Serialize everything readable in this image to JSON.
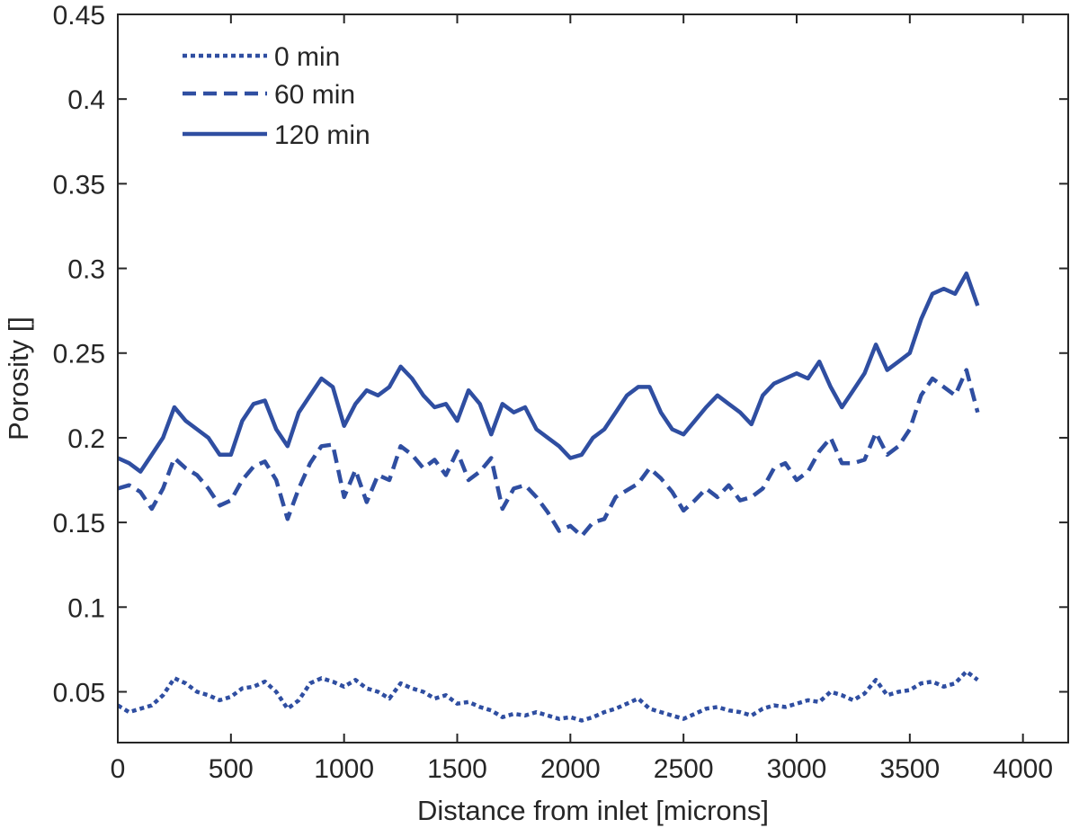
{
  "chart_data": {
    "type": "line",
    "title": "",
    "xlabel": "Distance from inlet [microns]",
    "ylabel": "Porosity []",
    "xlim": [
      0,
      4200
    ],
    "ylim": [
      0.02,
      0.45
    ],
    "xticks": [
      0,
      500,
      1000,
      1500,
      2000,
      2500,
      3000,
      3500,
      4000
    ],
    "xtick_labels": [
      "0",
      "500",
      "1000",
      "1500",
      "2000",
      "2500",
      "3000",
      "3500",
      "4000"
    ],
    "yticks": [
      0.05,
      0.1,
      0.15,
      0.2,
      0.25,
      0.3,
      0.35,
      0.4,
      0.45
    ],
    "ytick_labels": [
      "0.05",
      "0.1",
      "0.15",
      "0.2",
      "0.25",
      "0.3",
      "0.35",
      "0.4",
      "0.45"
    ],
    "grid": false,
    "legend_position": "top-left",
    "line_color": "#2F4EA1",
    "x": [
      0,
      50,
      100,
      150,
      200,
      250,
      300,
      350,
      400,
      450,
      500,
      550,
      600,
      650,
      700,
      750,
      800,
      850,
      900,
      950,
      1000,
      1050,
      1100,
      1150,
      1200,
      1250,
      1300,
      1350,
      1400,
      1450,
      1500,
      1550,
      1600,
      1650,
      1700,
      1750,
      1800,
      1850,
      1900,
      1950,
      2000,
      2050,
      2100,
      2150,
      2200,
      2250,
      2300,
      2350,
      2400,
      2450,
      2500,
      2550,
      2600,
      2650,
      2700,
      2750,
      2800,
      2850,
      2900,
      2950,
      3000,
      3050,
      3100,
      3150,
      3200,
      3250,
      3300,
      3350,
      3400,
      3450,
      3500,
      3550,
      3600,
      3650,
      3700,
      3750,
      3800
    ],
    "series": [
      {
        "name": "0 min",
        "dash": "dotted",
        "values": [
          0.042,
          0.038,
          0.04,
          0.042,
          0.048,
          0.058,
          0.055,
          0.05,
          0.048,
          0.045,
          0.047,
          0.052,
          0.053,
          0.056,
          0.05,
          0.04,
          0.045,
          0.055,
          0.058,
          0.056,
          0.053,
          0.057,
          0.052,
          0.05,
          0.046,
          0.055,
          0.052,
          0.05,
          0.046,
          0.048,
          0.043,
          0.044,
          0.041,
          0.039,
          0.035,
          0.037,
          0.036,
          0.038,
          0.036,
          0.034,
          0.035,
          0.033,
          0.035,
          0.038,
          0.04,
          0.043,
          0.046,
          0.04,
          0.038,
          0.036,
          0.034,
          0.037,
          0.04,
          0.041,
          0.039,
          0.038,
          0.036,
          0.04,
          0.042,
          0.041,
          0.043,
          0.045,
          0.044,
          0.05,
          0.048,
          0.045,
          0.049,
          0.057,
          0.048,
          0.05,
          0.051,
          0.055,
          0.056,
          0.053,
          0.055,
          0.062,
          0.057
        ]
      },
      {
        "name": "60 min",
        "dash": "dashed",
        "values": [
          0.17,
          0.172,
          0.168,
          0.158,
          0.17,
          0.188,
          0.182,
          0.178,
          0.17,
          0.16,
          0.163,
          0.175,
          0.183,
          0.186,
          0.175,
          0.152,
          0.17,
          0.185,
          0.195,
          0.196,
          0.165,
          0.181,
          0.162,
          0.178,
          0.175,
          0.195,
          0.19,
          0.182,
          0.187,
          0.178,
          0.192,
          0.175,
          0.18,
          0.188,
          0.158,
          0.17,
          0.172,
          0.165,
          0.156,
          0.145,
          0.148,
          0.142,
          0.15,
          0.152,
          0.165,
          0.169,
          0.173,
          0.182,
          0.176,
          0.168,
          0.157,
          0.163,
          0.17,
          0.165,
          0.172,
          0.163,
          0.165,
          0.17,
          0.182,
          0.185,
          0.175,
          0.18,
          0.192,
          0.2,
          0.185,
          0.185,
          0.187,
          0.203,
          0.19,
          0.195,
          0.205,
          0.225,
          0.235,
          0.23,
          0.225,
          0.24,
          0.215
        ]
      },
      {
        "name": "120 min",
        "dash": "solid",
        "values": [
          0.188,
          0.185,
          0.18,
          0.19,
          0.2,
          0.218,
          0.21,
          0.205,
          0.2,
          0.19,
          0.19,
          0.21,
          0.22,
          0.222,
          0.205,
          0.195,
          0.215,
          0.225,
          0.235,
          0.23,
          0.207,
          0.22,
          0.228,
          0.225,
          0.23,
          0.242,
          0.235,
          0.225,
          0.218,
          0.22,
          0.21,
          0.228,
          0.22,
          0.202,
          0.22,
          0.215,
          0.218,
          0.205,
          0.2,
          0.195,
          0.188,
          0.19,
          0.2,
          0.205,
          0.215,
          0.225,
          0.23,
          0.23,
          0.215,
          0.205,
          0.202,
          0.21,
          0.218,
          0.225,
          0.22,
          0.215,
          0.208,
          0.225,
          0.232,
          0.235,
          0.238,
          0.235,
          0.245,
          0.23,
          0.218,
          0.228,
          0.238,
          0.255,
          0.24,
          0.245,
          0.25,
          0.27,
          0.285,
          0.288,
          0.285,
          0.297,
          0.278
        ]
      }
    ]
  }
}
